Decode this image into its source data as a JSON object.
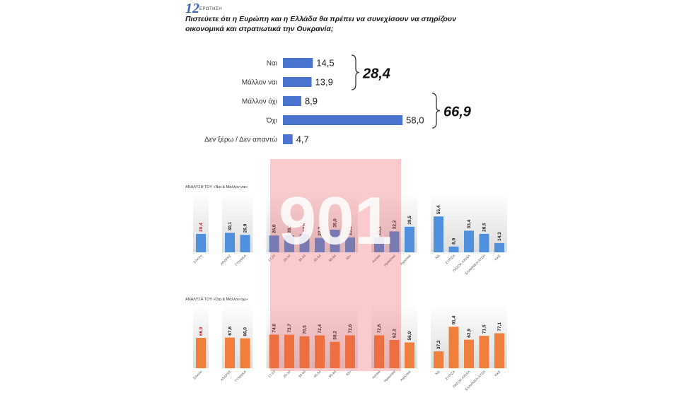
{
  "question": {
    "number": "12",
    "label": "ΕΡΩΤΗΣΗ",
    "text": "Πιστεύετε ότι η Ευρώπη και η Ελλάδα θα πρέπει να συνεχίσουν να στηρίζουν οικονομικά και στρατιωτικά την Ουκρανία;"
  },
  "watermark": {
    "text": "901"
  },
  "colors": {
    "main_bar": "#4a74cf",
    "blue": "#4f8fdc",
    "orange": "#ef7f3b",
    "highlight": "#d6262b",
    "brace": "#333333"
  },
  "chart_data": [
    {
      "type": "bar",
      "orientation": "horizontal",
      "categories": [
        "Ναι",
        "Μάλλον ναι",
        "Μάλλον όχι",
        "Όχι",
        "Δεν ξέρω / Δεν απαντώ"
      ],
      "values": [
        14.5,
        13.9,
        8.9,
        58.0,
        4.7
      ],
      "value_labels": [
        "14,5",
        "13,9",
        "8,9",
        "58,0",
        "4,7"
      ],
      "groups": [
        {
          "label": "28,4",
          "categories": [
            "Ναι",
            "Μάλλον ναι"
          ]
        },
        {
          "label": "66,9",
          "categories": [
            "Μάλλον όχι",
            "Όχι"
          ]
        }
      ],
      "xlim": [
        0,
        60
      ]
    },
    {
      "type": "bar",
      "title": "ΑΝΑΛΥΣΗ ΤΟΥ «Ναι & Μάλλον ναι»",
      "color": "blue",
      "groups": [
        {
          "categories": [
            "Σύνολο"
          ],
          "values": [
            28.4
          ],
          "value_labels": [
            "28,4"
          ],
          "highlight": true
        },
        {
          "categories": [
            "ΑΝΔΡΑΣ",
            "ΓΥΝΑΙΚΑ"
          ],
          "values": [
            30.1,
            26.9
          ],
          "value_labels": [
            "30,1",
            "26,9"
          ]
        },
        {
          "categories": [
            "17-24",
            "25-34",
            "35-44",
            "45-54",
            "55-64",
            "65+"
          ],
          "values": [
            26.0,
            26.3,
            27.9,
            22.3,
            35.0,
            23.1
          ],
          "value_labels": [
            "26,0",
            "26,3",
            "27,9",
            "22,3",
            "35,0",
            "23,1"
          ]
        },
        {
          "categories": [
            "Αστικά",
            "Ημιαστικά",
            "Αγροτικά"
          ],
          "values": [
            23.1,
            32.3,
            39.5
          ],
          "value_labels": [
            "23,1",
            "32,3",
            "39,5"
          ]
        },
        {
          "categories": [
            "ΝΔ",
            "ΣΥΡΙΖΑ",
            "ΠΑΣΟΚ-ΚΙΝΑΛ",
            "ΕΛΛΗΝΙΚΗ ΛΥΣΗ",
            "ΚΚΕ"
          ],
          "values": [
            55.4,
            8.9,
            33.4,
            28.5,
            14.3
          ],
          "value_labels": [
            "55,4",
            "8,9",
            "33,4",
            "28,5",
            "14,3"
          ]
        }
      ]
    },
    {
      "type": "bar",
      "title": "ΑΝΑΛΥΣΗ ΤΟΥ «Όχι & Μάλλον όχι»",
      "color": "orange",
      "groups": [
        {
          "categories": [
            "Σύνολο"
          ],
          "values": [
            66.9
          ],
          "value_labels": [
            "66,9"
          ],
          "highlight": true
        },
        {
          "categories": [
            "ΑΝΔΡΑΣ",
            "ΓΥΝΑΙΚΑ"
          ],
          "values": [
            67.6,
            66.0
          ],
          "value_labels": [
            "67,6",
            "66,0"
          ]
        },
        {
          "categories": [
            "17-24",
            "25-34",
            "35-44",
            "45-54",
            "55-64",
            "65+"
          ],
          "values": [
            74.0,
            73.7,
            70.5,
            72.4,
            58.2,
            72.6
          ],
          "value_labels": [
            "74,0",
            "73,7",
            "70,5",
            "72,4",
            "58,2",
            "72,6"
          ]
        },
        {
          "categories": [
            "Αστικά",
            "Ημιαστικά",
            "Αγροτικά"
          ],
          "values": [
            72.6,
            62.3,
            56.9
          ],
          "value_labels": [
            "72,6",
            "62,3",
            "56,9"
          ]
        },
        {
          "categories": [
            "ΝΔ",
            "ΣΥΡΙΖΑ",
            "ΠΑΣΟΚ-ΚΙΝΑΛ",
            "ΕΛΛΗΝΙΚΗ ΛΥΣΗ",
            "ΚΚΕ"
          ],
          "values": [
            37.2,
            91.4,
            62.9,
            71.5,
            77.1
          ],
          "value_labels": [
            "37,2",
            "91,4",
            "62,9",
            "71,5",
            "77,1"
          ]
        }
      ]
    }
  ]
}
